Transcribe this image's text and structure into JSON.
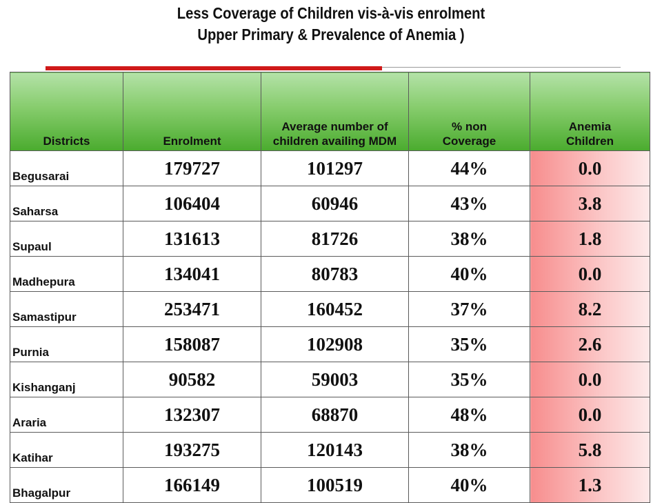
{
  "title": {
    "line1": "Less Coverage of Children vis-à-vis enrolment",
    "line2": "Upper Primary & Prevalence of Anemia )"
  },
  "table": {
    "headers": {
      "districts": "Districts",
      "enrolment": "Enrolment",
      "average": "Average number of children availing MDM",
      "non_coverage": "% non Coverage",
      "anemia": "Anemia Children"
    },
    "rows": [
      {
        "district": "Begusarai",
        "enrolment": "179727",
        "average": "101297",
        "non_coverage": "44%",
        "anemia": "0.0"
      },
      {
        "district": "Saharsa",
        "enrolment": "106404",
        "average": "60946",
        "non_coverage": "43%",
        "anemia": "3.8"
      },
      {
        "district": "Supaul",
        "enrolment": "131613",
        "average": "81726",
        "non_coverage": "38%",
        "anemia": "1.8"
      },
      {
        "district": "Madhepura",
        "enrolment": "134041",
        "average": "80783",
        "non_coverage": "40%",
        "anemia": "0.0"
      },
      {
        "district": "Samastipur",
        "enrolment": "253471",
        "average": "160452",
        "non_coverage": "37%",
        "anemia": "8.2"
      },
      {
        "district": "Purnia",
        "enrolment": "158087",
        "average": "102908",
        "non_coverage": "35%",
        "anemia": "2.6"
      },
      {
        "district": "Kishanganj",
        "enrolment": "90582",
        "average": "59003",
        "non_coverage": "35%",
        "anemia": "0.0"
      },
      {
        "district": "Araria",
        "enrolment": "132307",
        "average": "68870",
        "non_coverage": "48%",
        "anemia": "0.0"
      },
      {
        "district": "Katihar",
        "enrolment": "193275",
        "average": "120143",
        "non_coverage": "38%",
        "anemia": "5.8"
      },
      {
        "district": "Bhagalpur",
        "enrolment": "166149",
        "average": "100519",
        "non_coverage": "40%",
        "anemia": "1.3"
      }
    ]
  },
  "colors": {
    "header_green": "#4aab2e",
    "title_rule_red": "#d01919",
    "anemia_pink": "#f78d8d"
  }
}
